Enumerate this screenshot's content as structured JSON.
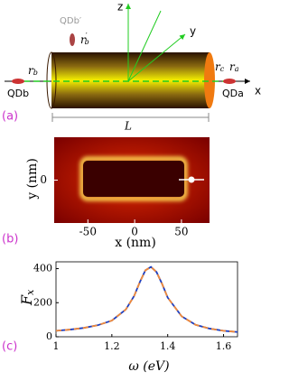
{
  "panel_a": {
    "label": "(a)",
    "axis_z": "z",
    "axis_y": "y",
    "axis_x": "x",
    "qdb_prime": "QDb′",
    "r_b_prime": {
      "base": "r",
      "sub": "b",
      "prime": "′"
    },
    "r_b": {
      "base": "r",
      "sub": "b"
    },
    "qdb": "QDb",
    "r_c": {
      "base": "r",
      "sub": "c"
    },
    "r_a": {
      "base": "r",
      "sub": "a"
    },
    "qda": "QDa",
    "length": "L"
  },
  "panel_b": {
    "label": "(b)",
    "ylabel": "y (nm)",
    "xlabel": "x (nm)",
    "xlim": [
      -86,
      80
    ],
    "xticks": [
      -50,
      0,
      50
    ],
    "ylim": [
      -45,
      45
    ],
    "yticks": [
      0
    ]
  },
  "chart_data": {
    "type": "line",
    "label": "(c)",
    "xlabel": "ω (eV)",
    "ylabel": {
      "base": "F",
      "sub": "x"
    },
    "x": [
      1,
      1.05,
      1.1,
      1.15,
      1.2,
      1.25,
      1.28,
      1.3,
      1.32,
      1.34,
      1.36,
      1.38,
      1.4,
      1.45,
      1.5,
      1.55,
      1.6,
      1.65
    ],
    "series": [
      {
        "color": "#1f3fbf",
        "dash": false,
        "values": [
          35,
          42,
          52,
          68,
          95,
          160,
          240,
          320,
          390,
          410,
          380,
          310,
          230,
          120,
          70,
          48,
          35,
          28
        ]
      },
      {
        "color": "#f08a3a",
        "dash": true,
        "values": [
          35,
          42,
          52,
          68,
          95,
          160,
          240,
          320,
          390,
          410,
          380,
          310,
          230,
          120,
          70,
          48,
          35,
          28
        ]
      }
    ],
    "xlim": [
      1,
      1.65
    ],
    "ylim": [
      0,
      440
    ],
    "xticks": [
      1,
      1.2,
      1.4,
      1.6
    ],
    "yticks": [
      0,
      200,
      400
    ]
  }
}
